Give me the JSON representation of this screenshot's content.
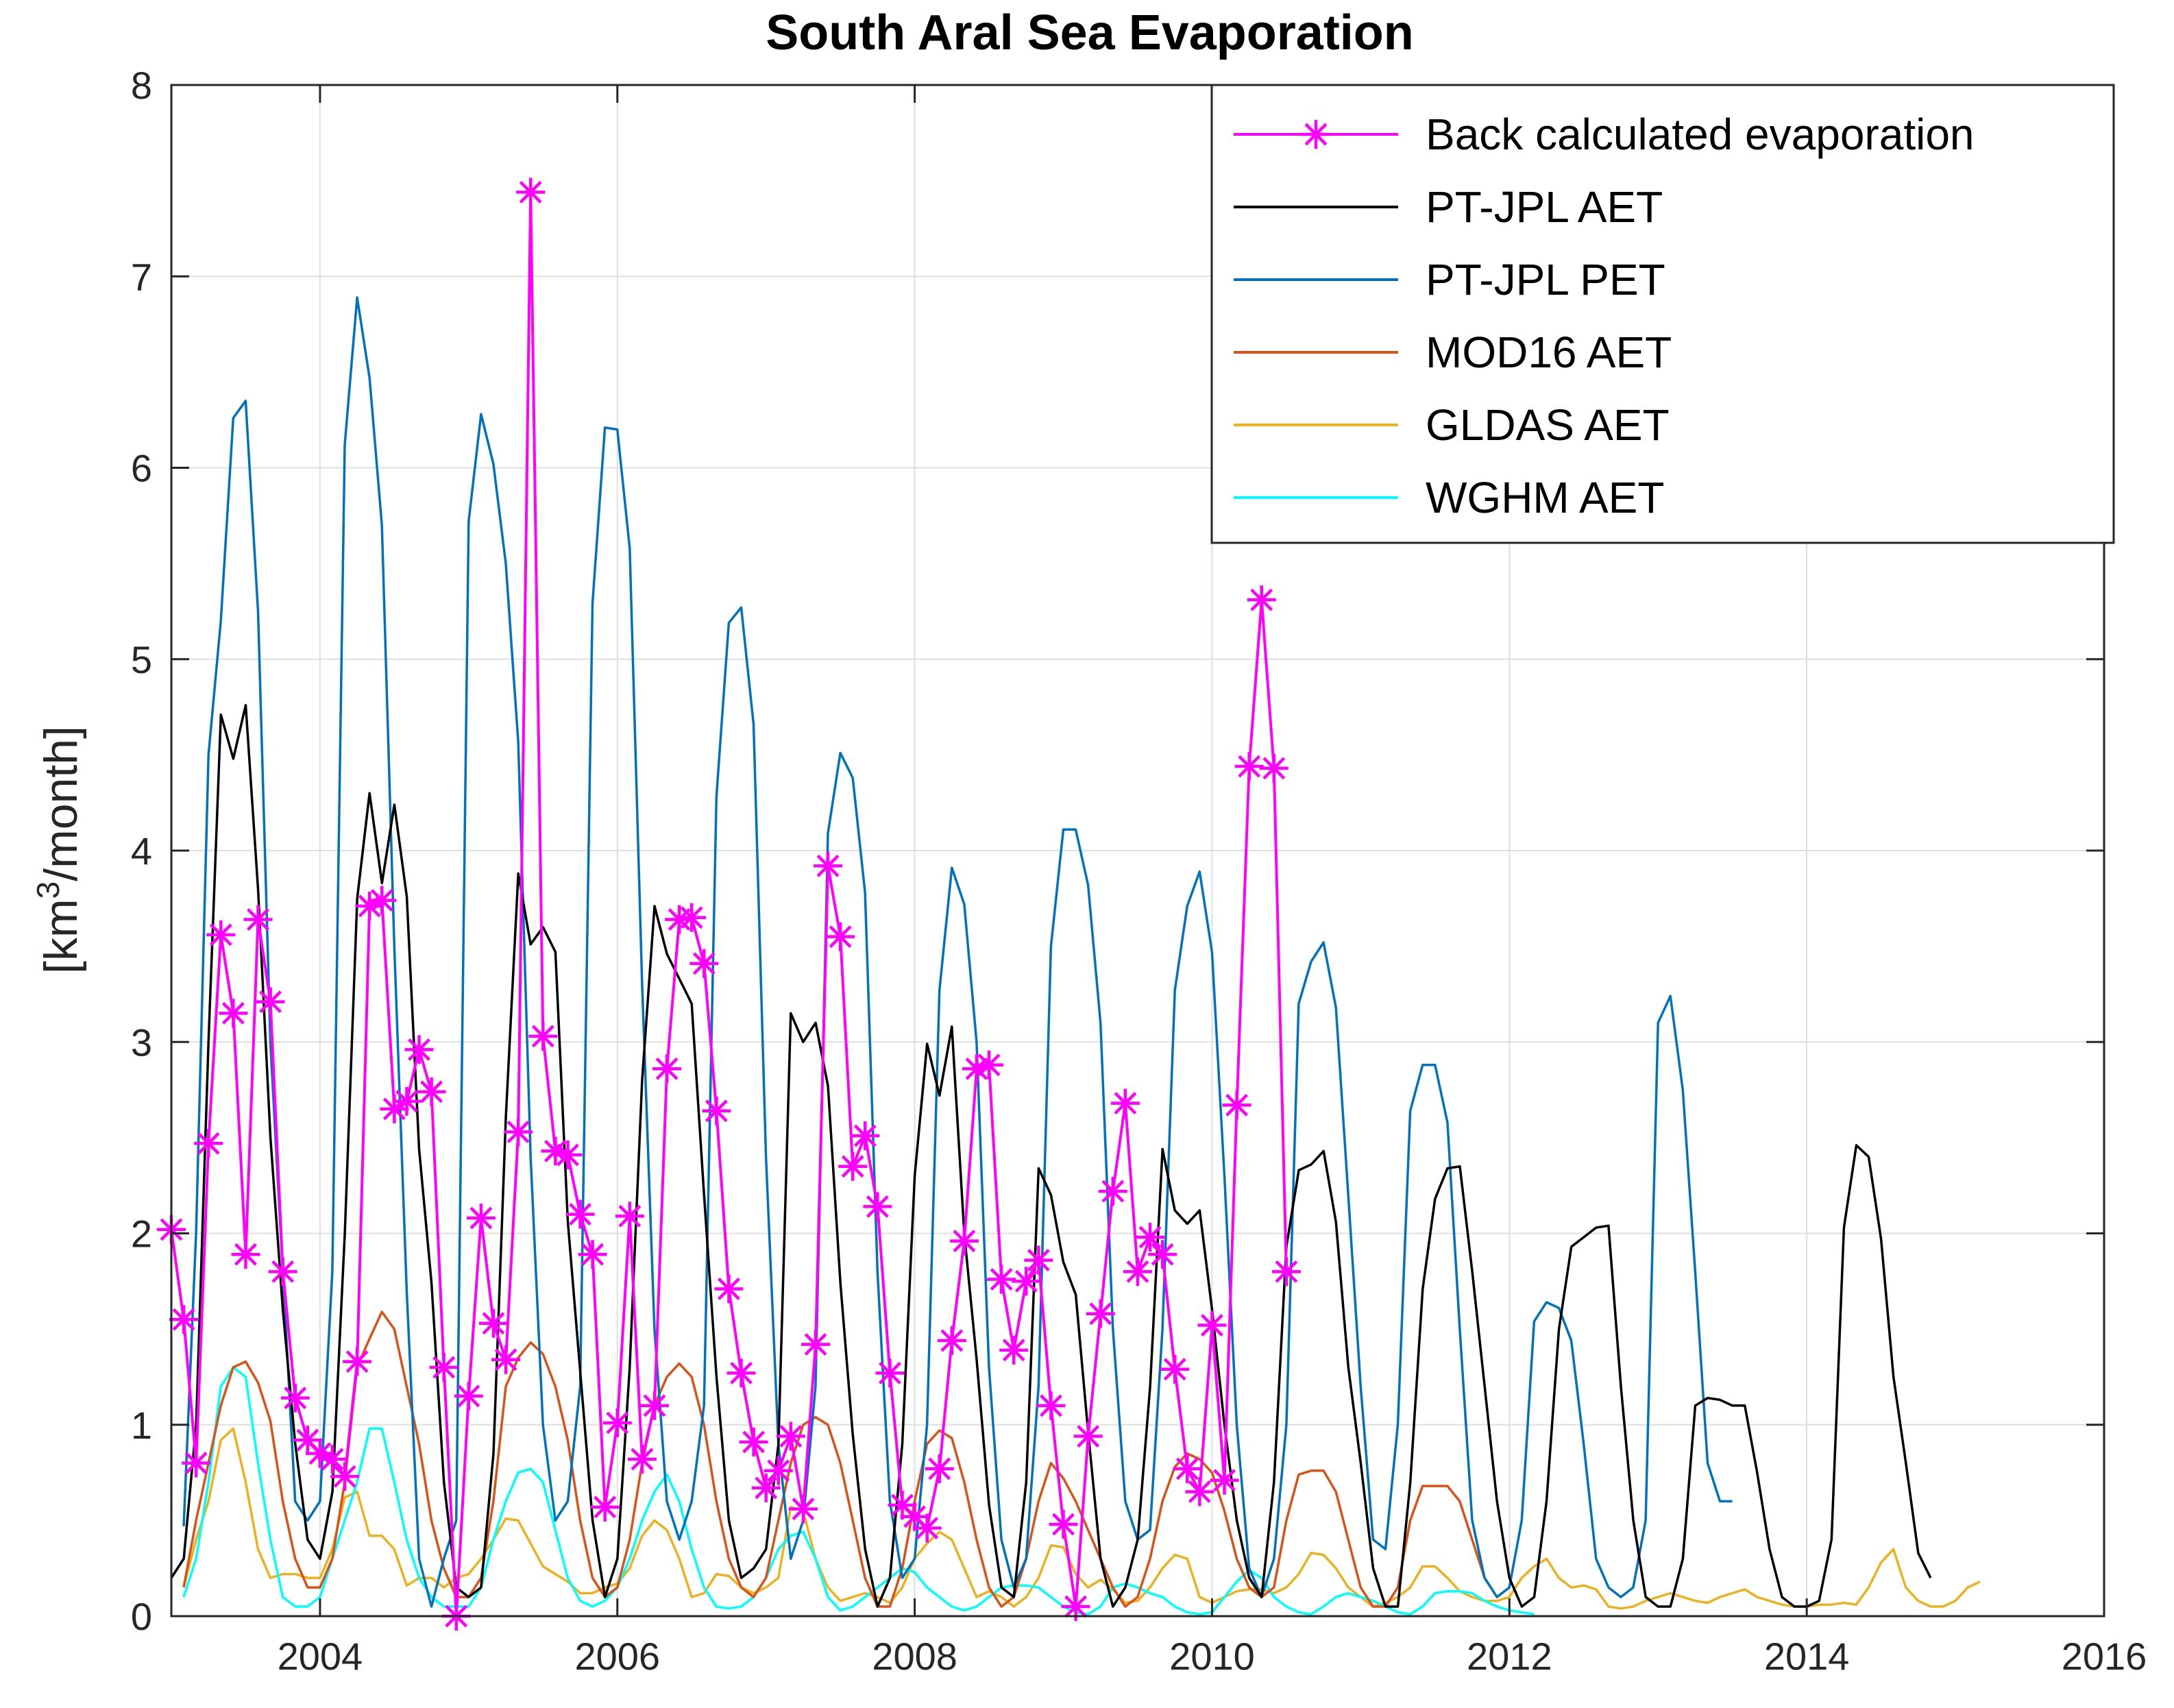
{
  "chart_data": {
    "type": "line",
    "title": "South Aral Sea Evaporation",
    "xlabel": "",
    "ylabel": "[km³/month]",
    "ylabel_parts": {
      "prefix": "[km",
      "sup": "3",
      "suffix": "/month]"
    },
    "xlim": [
      2003.0,
      2016.0
    ],
    "ylim": [
      0,
      8
    ],
    "xticks": [
      2004,
      2006,
      2008,
      2010,
      2012,
      2014,
      2016
    ],
    "yticks": [
      0,
      1,
      2,
      3,
      4,
      5,
      6,
      7,
      8
    ],
    "grid": true,
    "legend_position": "top-right",
    "series": [
      {
        "name": "Back calculated evaporation",
        "color": "#FF00FF",
        "marker": "asterisk",
        "x_start": 2003.0,
        "values": [
          2.02,
          1.55,
          0.8,
          2.47,
          3.56,
          3.15,
          1.89,
          3.64,
          3.21,
          1.8,
          1.14,
          0.92,
          0.85,
          0.82,
          0.73,
          1.33,
          3.71,
          3.74,
          2.65,
          2.69,
          2.96,
          2.74,
          1.3,
          0.0,
          1.15,
          2.08,
          1.53,
          1.34,
          2.53,
          7.44,
          3.03,
          2.43,
          2.41,
          2.1,
          1.89,
          0.57,
          1.01,
          2.09,
          0.82,
          1.1,
          2.86,
          3.64,
          3.65,
          3.41,
          2.64,
          1.71,
          1.27,
          0.91,
          0.67,
          0.76,
          0.94,
          0.56,
          1.42,
          3.92,
          3.55,
          2.35,
          2.51,
          2.14,
          1.27,
          0.58,
          0.52,
          0.46,
          0.77,
          1.44,
          1.96,
          2.86,
          2.88,
          1.76,
          1.39,
          1.75,
          1.86,
          1.1,
          0.48,
          0.05,
          0.94,
          1.58,
          2.22,
          2.68,
          1.8,
          1.98,
          1.89,
          1.29,
          0.77,
          0.65,
          1.52,
          0.71,
          2.67,
          4.44,
          5.31,
          4.43,
          1.8
        ]
      },
      {
        "name": "PT-JPL AET",
        "color": "#000000",
        "x_start": 2003.0,
        "values": [
          0.2,
          0.3,
          1.0,
          3.0,
          4.71,
          4.48,
          4.76,
          3.8,
          2.5,
          1.6,
          0.9,
          0.4,
          0.3,
          0.65,
          2.0,
          3.75,
          4.3,
          3.83,
          4.24,
          3.76,
          2.44,
          1.74,
          0.7,
          0.15,
          0.1,
          0.15,
          0.85,
          2.61,
          3.88,
          3.51,
          3.6,
          3.47,
          2.06,
          1.28,
          0.5,
          0.1,
          0.3,
          1.3,
          2.8,
          3.71,
          3.46,
          3.33,
          3.2,
          2.2,
          1.25,
          0.5,
          0.2,
          0.25,
          0.35,
          0.9,
          3.15,
          3.0,
          3.1,
          2.77,
          1.74,
          0.95,
          0.35,
          0.05,
          0.2,
          0.9,
          2.3,
          2.99,
          2.72,
          3.08,
          2.0,
          1.34,
          0.58,
          0.15,
          0.1,
          0.7,
          2.34,
          2.2,
          1.85,
          1.68,
          0.96,
          0.3,
          0.05,
          0.15,
          0.4,
          1.2,
          2.44,
          2.12,
          2.05,
          2.12,
          1.6,
          1.0,
          0.5,
          0.2,
          0.1,
          0.7,
          1.93,
          2.33,
          2.36,
          2.43,
          2.06,
          1.3,
          0.8,
          0.25,
          0.05,
          0.05,
          0.7,
          1.71,
          2.18,
          2.34,
          2.35,
          1.8,
          1.2,
          0.6,
          0.2,
          0.05,
          0.1,
          0.6,
          1.5,
          1.93,
          1.98,
          2.03,
          2.04,
          1.2,
          0.5,
          0.1,
          0.05,
          0.05,
          0.3,
          1.1,
          1.14,
          1.13,
          1.1,
          1.1,
          0.75,
          0.35,
          0.1,
          0.05,
          0.05,
          0.08,
          0.4,
          2.03,
          2.46,
          2.4,
          1.97,
          1.25,
          0.8,
          0.33,
          0.2
        ]
      },
      {
        "name": "PT-JPL PET",
        "color": "#0072BD",
        "x_start": 2003.083,
        "values": [
          0.47,
          2.0,
          4.5,
          5.2,
          6.26,
          6.35,
          5.25,
          3.0,
          1.8,
          0.6,
          0.5,
          0.6,
          1.8,
          6.12,
          6.89,
          6.47,
          5.7,
          3.5,
          1.7,
          0.3,
          0.05,
          0.3,
          0.5,
          5.72,
          6.28,
          6.02,
          5.5,
          4.57,
          2.4,
          1.0,
          0.5,
          0.6,
          1.2,
          5.29,
          6.21,
          6.2,
          5.58,
          3.3,
          1.5,
          0.6,
          0.4,
          0.6,
          1.1,
          4.28,
          5.19,
          5.27,
          4.66,
          2.4,
          0.9,
          0.3,
          0.5,
          1.2,
          4.09,
          4.51,
          4.38,
          3.78,
          1.8,
          0.6,
          0.2,
          0.3,
          1.0,
          3.27,
          3.91,
          3.72,
          3.0,
          1.3,
          0.4,
          0.15,
          0.3,
          1.2,
          3.5,
          4.11,
          4.11,
          3.82,
          3.1,
          1.5,
          0.6,
          0.4,
          0.45,
          1.5,
          3.27,
          3.71,
          3.89,
          3.47,
          2.3,
          1.0,
          0.25,
          0.1,
          0.3,
          1.0,
          3.2,
          3.42,
          3.52,
          3.18,
          2.2,
          1.2,
          0.4,
          0.35,
          1.0,
          2.64,
          2.88,
          2.88,
          2.58,
          1.5,
          0.5,
          0.2,
          0.1,
          0.15,
          0.5,
          1.54,
          1.64,
          1.61,
          1.44,
          0.9,
          0.3,
          0.15,
          0.1,
          0.15,
          0.5,
          3.1,
          3.24,
          2.75,
          1.8,
          0.8,
          0.6,
          0.6
        ]
      },
      {
        "name": "MOD16 AET",
        "color": "#D95319",
        "x_start": 2003.083,
        "values": [
          0.15,
          0.5,
          0.8,
          1.1,
          1.3,
          1.33,
          1.22,
          1.02,
          0.6,
          0.3,
          0.15,
          0.15,
          0.3,
          0.7,
          1.3,
          1.45,
          1.59,
          1.5,
          1.2,
          0.9,
          0.5,
          0.25,
          0.1,
          0.1,
          0.2,
          0.6,
          1.2,
          1.35,
          1.43,
          1.37,
          1.2,
          0.92,
          0.5,
          0.2,
          0.1,
          0.15,
          0.4,
          0.8,
          1.1,
          1.25,
          1.32,
          1.25,
          1.0,
          0.6,
          0.3,
          0.15,
          0.1,
          0.2,
          0.5,
          0.8,
          1.0,
          1.04,
          1.0,
          0.8,
          0.5,
          0.2,
          0.05,
          0.05,
          0.25,
          0.6,
          0.9,
          0.97,
          0.93,
          0.7,
          0.4,
          0.15,
          0.05,
          0.1,
          0.3,
          0.6,
          0.8,
          0.72,
          0.6,
          0.45,
          0.3,
          0.15,
          0.05,
          0.1,
          0.3,
          0.6,
          0.78,
          0.85,
          0.82,
          0.75,
          0.55,
          0.3,
          0.15,
          0.1,
          0.15,
          0.5,
          0.74,
          0.76,
          0.76,
          0.65,
          0.4,
          0.15,
          0.05,
          0.05,
          0.15,
          0.5,
          0.68,
          0.68,
          0.68,
          0.6,
          0.4,
          0.2,
          0.1
        ]
      },
      {
        "name": "GLDAS AET",
        "color": "#EDB120",
        "x_start": 2003.083,
        "values": [
          0.15,
          0.4,
          0.6,
          0.92,
          0.98,
          0.7,
          0.35,
          0.2,
          0.22,
          0.22,
          0.2,
          0.2,
          0.35,
          0.62,
          0.65,
          0.42,
          0.42,
          0.35,
          0.16,
          0.2,
          0.2,
          0.15,
          0.2,
          0.22,
          0.3,
          0.4,
          0.51,
          0.5,
          0.38,
          0.26,
          0.22,
          0.18,
          0.12,
          0.12,
          0.15,
          0.17,
          0.25,
          0.42,
          0.5,
          0.45,
          0.3,
          0.1,
          0.12,
          0.22,
          0.21,
          0.15,
          0.12,
          0.15,
          0.2,
          0.57,
          0.55,
          0.3,
          0.15,
          0.08,
          0.1,
          0.12,
          0.1,
          0.07,
          0.15,
          0.3,
          0.38,
          0.44,
          0.4,
          0.25,
          0.1,
          0.13,
          0.1,
          0.05,
          0.1,
          0.2,
          0.37,
          0.36,
          0.22,
          0.15,
          0.19,
          0.14,
          0.07,
          0.08,
          0.15,
          0.25,
          0.32,
          0.3,
          0.1,
          0.07,
          0.1,
          0.13,
          0.14,
          0.14,
          0.12,
          0.15,
          0.22,
          0.33,
          0.32,
          0.25,
          0.15,
          0.1,
          0.05,
          0.07,
          0.1,
          0.15,
          0.26,
          0.26,
          0.2,
          0.13,
          0.1,
          0.08,
          0.08,
          0.1,
          0.2,
          0.26,
          0.3,
          0.2,
          0.15,
          0.16,
          0.14,
          0.05,
          0.04,
          0.05,
          0.08,
          0.1,
          0.12,
          0.1,
          0.08,
          0.07,
          0.1,
          0.12,
          0.14,
          0.1,
          0.08,
          0.06,
          0.05,
          0.05,
          0.06,
          0.06,
          0.07,
          0.06,
          0.15,
          0.28,
          0.35,
          0.15,
          0.08,
          0.05,
          0.05,
          0.08,
          0.15,
          0.18
        ]
      },
      {
        "name": "WGHM AET",
        "color": "#00FFFF",
        "x_start": 2003.083,
        "values": [
          0.1,
          0.3,
          0.7,
          1.2,
          1.3,
          1.25,
          0.8,
          0.4,
          0.1,
          0.05,
          0.05,
          0.1,
          0.3,
          0.5,
          0.7,
          0.98,
          0.98,
          0.7,
          0.4,
          0.2,
          0.1,
          0.05,
          0.05,
          0.05,
          0.15,
          0.4,
          0.6,
          0.75,
          0.77,
          0.7,
          0.45,
          0.2,
          0.08,
          0.05,
          0.08,
          0.15,
          0.3,
          0.5,
          0.65,
          0.74,
          0.6,
          0.35,
          0.15,
          0.05,
          0.04,
          0.05,
          0.1,
          0.2,
          0.35,
          0.42,
          0.44,
          0.3,
          0.1,
          0.03,
          0.05,
          0.1,
          0.15,
          0.2,
          0.25,
          0.23,
          0.15,
          0.1,
          0.05,
          0.03,
          0.05,
          0.1,
          0.15,
          0.16,
          0.16,
          0.15,
          0.1,
          0.05,
          0.02,
          0.01,
          0.05,
          0.15,
          0.17,
          0.15,
          0.12,
          0.1,
          0.05,
          0.02,
          0.01,
          0.02,
          0.1,
          0.18,
          0.24,
          0.2,
          0.1,
          0.05,
          0.02,
          0.01,
          0.05,
          0.1,
          0.12,
          0.1,
          0.08,
          0.05,
          0.02,
          0.01,
          0.05,
          0.12,
          0.13,
          0.13,
          0.12,
          0.08,
          0.05,
          0.03,
          0.02,
          0.01
        ]
      }
    ]
  }
}
